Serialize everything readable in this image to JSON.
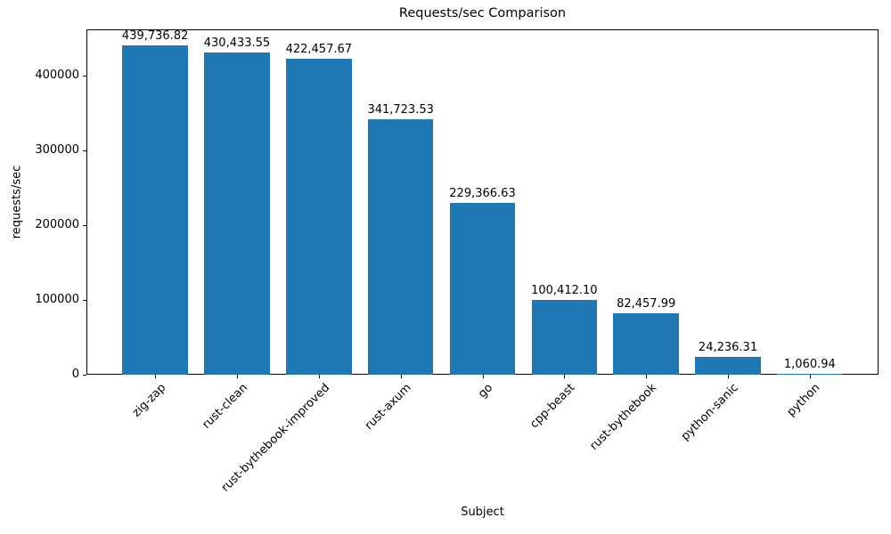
{
  "chart_data": {
    "type": "bar",
    "title": "Requests/sec Comparison",
    "xlabel": "Subject",
    "ylabel": "requests/sec",
    "categories": [
      "zig-zap",
      "rust-clean",
      "rust-bythebook-improved",
      "rust-axum",
      "go",
      "cpp-beast",
      "rust-bythebook",
      "python-sanic",
      "python"
    ],
    "values": [
      439736.82,
      430433.55,
      422457.67,
      341723.53,
      229366.63,
      100412.1,
      82457.99,
      24236.31,
      1060.94
    ],
    "bar_value_labels": [
      "439,736.82",
      "430,433.55",
      "422,457.67",
      "341,723.53",
      "229,366.63",
      "100,412.10",
      "82,457.99",
      "24,236.31",
      "1,060.94"
    ],
    "bar_color": "#1f77b4",
    "ylim": [
      0,
      461723.66
    ],
    "yticks": [
      0,
      100000,
      200000,
      300000,
      400000
    ],
    "ytick_labels": [
      "0",
      "100000",
      "200000",
      "300000",
      "400000"
    ],
    "xtick_rotation_deg": 45,
    "grid": false,
    "legend": null
  }
}
